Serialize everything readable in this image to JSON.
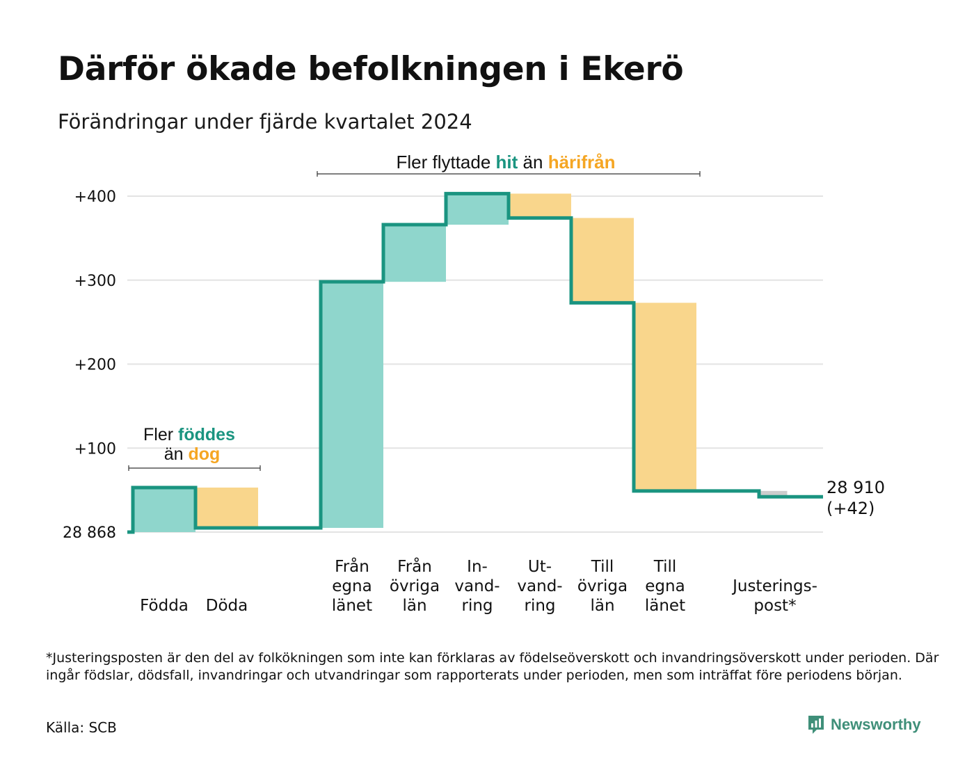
{
  "title": "Därför ökade befolkningen i Ekerö",
  "subtitle": "Förändringar under fjärde kvartalet 2024",
  "annotations": {
    "birth": {
      "line1_prefix": "Fler ",
      "line1_emph": "föddes",
      "line2_prefix": "än ",
      "line2_emph": "dog"
    },
    "migration": {
      "prefix": "Fler flyttade ",
      "emph1": "hit",
      "middle": " än ",
      "emph2": "härifrån"
    }
  },
  "colors": {
    "line": "#1a9480",
    "increase": "#8fd6cc",
    "decrease": "#f9d68c",
    "adjustment": "#cccccc",
    "emph_green": "#1a9480",
    "emph_orange": "#f5a623",
    "grid": "#e3e3e3",
    "brand": "#3f8f79"
  },
  "chart_data": {
    "type": "waterfall",
    "baseline_label": "28 868",
    "start_value": 28868,
    "end_label_line1": "28 910",
    "end_label_line2": "(+42)",
    "y_ticks": [
      {
        "value": 100,
        "label": "+100"
      },
      {
        "value": 200,
        "label": "+200"
      },
      {
        "value": 300,
        "label": "+300"
      },
      {
        "value": 400,
        "label": "+400"
      }
    ],
    "ylim": [
      0,
      400
    ],
    "steps": [
      {
        "label_lines": [
          "Födda"
        ],
        "from": 0,
        "to": 53,
        "kind": "increase"
      },
      {
        "label_lines": [
          "Döda"
        ],
        "from": 53,
        "to": 5,
        "kind": "decrease"
      },
      {
        "label_lines": [],
        "from": 5,
        "to": 5,
        "kind": "gap"
      },
      {
        "label_lines": [
          "Från",
          "egna",
          "länet"
        ],
        "from": 5,
        "to": 298,
        "kind": "increase"
      },
      {
        "label_lines": [
          "Från",
          "övriga",
          "län"
        ],
        "from": 298,
        "to": 366,
        "kind": "increase"
      },
      {
        "label_lines": [
          "In-",
          "vand-",
          "ring"
        ],
        "from": 366,
        "to": 403,
        "kind": "increase"
      },
      {
        "label_lines": [
          "Ut-",
          "vand-",
          "ring"
        ],
        "from": 403,
        "to": 374,
        "kind": "decrease"
      },
      {
        "label_lines": [
          "Till",
          "övriga",
          "län"
        ],
        "from": 374,
        "to": 273,
        "kind": "decrease"
      },
      {
        "label_lines": [
          "Till",
          "egna",
          "länet"
        ],
        "from": 273,
        "to": 49,
        "kind": "decrease"
      },
      {
        "label_lines": [],
        "from": 49,
        "to": 49,
        "kind": "gap"
      },
      {
        "label_lines": [
          "Justerings-",
          "post*"
        ],
        "from": 49,
        "to": 42,
        "kind": "adjustment"
      }
    ]
  },
  "footnote": "*Justeringsposten är den del av folkökningen som inte kan förklaras av födelseöverskott och invandringsöverskott under perioden. Där ingår födslar, dödsfall, invandringar och utvandringar som rapporterats under perioden, men som inträffat före periodens början.",
  "source": "Källa: SCB",
  "brand": {
    "name": "Newsworthy",
    "icon": "newsworthy-logo-icon"
  }
}
